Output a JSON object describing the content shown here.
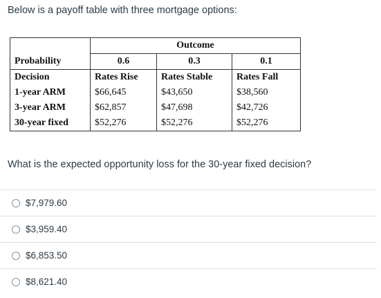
{
  "question": {
    "intro": "Below is a payoff table with three mortgage options:",
    "prompt": "What is the expected opportunity loss for the 30-year fixed decision?"
  },
  "table": {
    "outcome_header": "Outcome",
    "probability_label": "Probability",
    "probabilities": [
      "0.6",
      "0.3",
      "0.1"
    ],
    "decision_label": "Decision",
    "outcomes": [
      "Rates Rise",
      "Rates Stable",
      "Rates Fall"
    ],
    "rows": [
      {
        "decision": "1-year ARM",
        "values": [
          "$66,645",
          "$43,650",
          "$38,560"
        ]
      },
      {
        "decision": "3-year ARM",
        "values": [
          "$62,857",
          "$47,698",
          "$42,726"
        ]
      },
      {
        "decision": "30-year fixed",
        "values": [
          "$52,276",
          "$52,276",
          "$52,276"
        ]
      }
    ]
  },
  "answers": [
    {
      "label": "$7,979.60"
    },
    {
      "label": "$3,959.40"
    },
    {
      "label": "$6,853.50"
    },
    {
      "label": "$8,621.40"
    }
  ]
}
